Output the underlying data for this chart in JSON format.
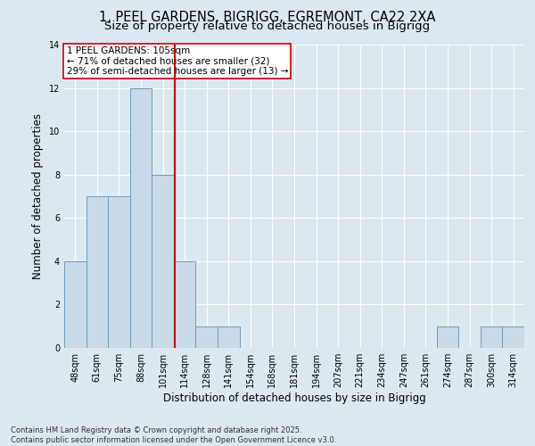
{
  "title_line1": "1, PEEL GARDENS, BIGRIGG, EGREMONT, CA22 2XA",
  "title_line2": "Size of property relative to detached houses in Bigrigg",
  "xlabel": "Distribution of detached houses by size in Bigrigg",
  "ylabel": "Number of detached properties",
  "categories": [
    "48sqm",
    "61sqm",
    "75sqm",
    "88sqm",
    "101sqm",
    "114sqm",
    "128sqm",
    "141sqm",
    "154sqm",
    "168sqm",
    "181sqm",
    "194sqm",
    "207sqm",
    "221sqm",
    "234sqm",
    "247sqm",
    "261sqm",
    "274sqm",
    "287sqm",
    "300sqm",
    "314sqm"
  ],
  "values": [
    4,
    7,
    7,
    12,
    8,
    4,
    1,
    1,
    0,
    0,
    0,
    0,
    0,
    0,
    0,
    0,
    0,
    1,
    0,
    1,
    1
  ],
  "bar_color": "#c9d9e8",
  "bar_edge_color": "#6a9dbf",
  "property_line_x": 4.54,
  "property_line_color": "#cc0000",
  "annotation_text": "1 PEEL GARDENS: 105sqm\n← 71% of detached houses are smaller (32)\n29% of semi-detached houses are larger (13) →",
  "annotation_box_color": "#ffffff",
  "annotation_box_edge_color": "#cc0000",
  "ylim": [
    0,
    14
  ],
  "yticks": [
    0,
    2,
    4,
    6,
    8,
    10,
    12,
    14
  ],
  "background_color": "#dce8f0",
  "plot_background_color": "#dce8f0",
  "footer_text": "Contains HM Land Registry data © Crown copyright and database right 2025.\nContains public sector information licensed under the Open Government Licence v3.0.",
  "title_fontsize": 10.5,
  "subtitle_fontsize": 9.5,
  "axis_label_fontsize": 8.5,
  "tick_fontsize": 7,
  "annotation_fontsize": 7.5,
  "footer_fontsize": 6
}
